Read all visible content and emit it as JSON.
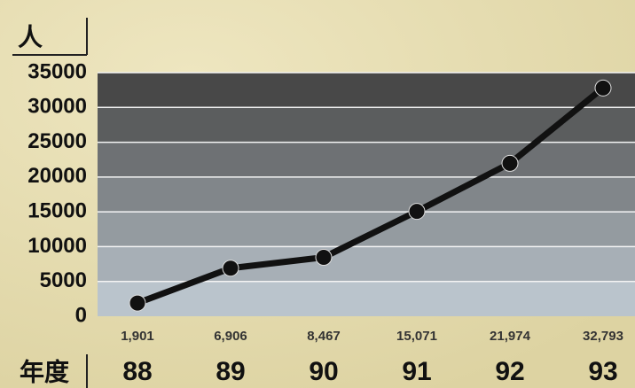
{
  "chart_data": {
    "type": "line",
    "y_label": "人",
    "x_label": "年度",
    "categories": [
      "88",
      "89",
      "90",
      "91",
      "92",
      "93"
    ],
    "values": [
      1901,
      6906,
      8467,
      15071,
      21974,
      32793
    ],
    "value_labels": [
      "1,901",
      "6,906",
      "8,467",
      "15,071",
      "21,974",
      "32,793"
    ],
    "color": "#111111",
    "ylim": [
      0,
      35000
    ],
    "yticks": [
      0,
      5000,
      10000,
      15000,
      20000,
      25000,
      30000,
      35000
    ],
    "grid": true
  }
}
